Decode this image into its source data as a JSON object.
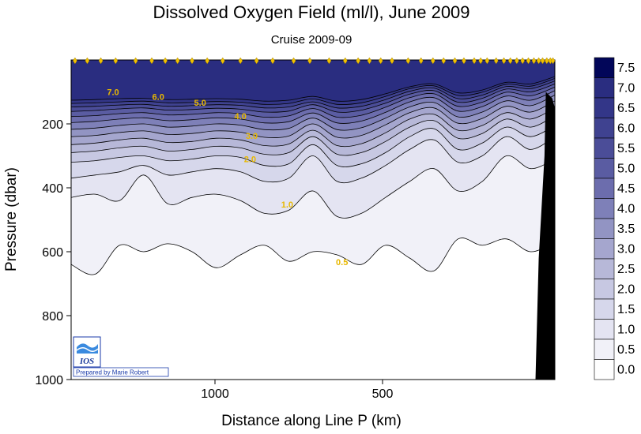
{
  "chart_data": {
    "type": "heatmap",
    "title": "Dissolved Oxygen Field  (ml/l),  June 2009",
    "subtitle": "Cruise 2009-09",
    "xlabel": "Distance along Line P  (km)",
    "ylabel": "Pressure  (dbar)",
    "xlim": [
      1500,
      0
    ],
    "ylim": [
      1000,
      0
    ],
    "x_ticks": [
      "1000",
      "500"
    ],
    "y_ticks": [
      "200",
      "400",
      "600",
      "800",
      "1000"
    ],
    "colorbar": {
      "levels": [
        "7.5",
        "7.0",
        "6.5",
        "6.0",
        "5.5",
        "5.0",
        "4.5",
        "4.0",
        "3.5",
        "3.0",
        "2.5",
        "2.0",
        "1.5",
        "1.0",
        "0.5",
        "0.0"
      ],
      "colors": [
        "#020659",
        "#2a2d80",
        "#333688",
        "#3f4290",
        "#4b4d98",
        "#5a5ca2",
        "#6c6dad",
        "#7e80b8",
        "#9294c3",
        "#a5a6ce",
        "#b7b8d8",
        "#c7c8e2",
        "#d6d7eb",
        "#e4e4f2",
        "#f1f1f8",
        "#ffffff"
      ]
    },
    "contour_labels": [
      {
        "text": "7.0",
        "distance_km": 1370,
        "pressure_dbar": 110
      },
      {
        "text": "6.0",
        "distance_km": 1230,
        "pressure_dbar": 125
      },
      {
        "text": "5.0",
        "distance_km": 1100,
        "pressure_dbar": 143
      },
      {
        "text": "4.0",
        "distance_km": 975,
        "pressure_dbar": 185
      },
      {
        "text": "3.0",
        "distance_km": 940,
        "pressure_dbar": 247
      },
      {
        "text": "2.0",
        "distance_km": 945,
        "pressure_dbar": 320
      },
      {
        "text": "1.0",
        "distance_km": 830,
        "pressure_dbar": 462
      },
      {
        "text": "0.5",
        "distance_km": 660,
        "pressure_dbar": 642
      }
    ],
    "isolines": [
      {
        "level": 0.5,
        "pressure_dbar": [
          640,
          670,
          580,
          600,
          575,
          600,
          650,
          610,
          580,
          630,
          600,
          610,
          640,
          580,
          620,
          660,
          560,
          580,
          560,
          600,
          570
        ]
      },
      {
        "level": 1.0,
        "pressure_dbar": [
          430,
          420,
          440,
          360,
          450,
          430,
          420,
          440,
          480,
          470,
          410,
          490,
          480,
          430,
          380,
          340,
          410,
          380,
          300,
          340,
          310
        ]
      },
      {
        "level": 1.5,
        "pressure_dbar": [
          370,
          360,
          350,
          330,
          360,
          350,
          340,
          350,
          380,
          370,
          300,
          380,
          370,
          330,
          280,
          250,
          320,
          300,
          240,
          280,
          240
        ]
      },
      {
        "level": 2.0,
        "pressure_dbar": [
          320,
          315,
          305,
          300,
          315,
          310,
          300,
          305,
          330,
          325,
          265,
          330,
          325,
          290,
          240,
          215,
          280,
          260,
          210,
          240,
          205
        ]
      },
      {
        "level": 2.5,
        "pressure_dbar": [
          290,
          285,
          275,
          270,
          285,
          280,
          270,
          275,
          295,
          290,
          240,
          295,
          290,
          255,
          210,
          190,
          245,
          230,
          185,
          210,
          175
        ]
      },
      {
        "level": 3.0,
        "pressure_dbar": [
          265,
          260,
          250,
          245,
          258,
          255,
          245,
          250,
          268,
          263,
          220,
          268,
          262,
          228,
          185,
          170,
          220,
          205,
          165,
          185,
          150
        ]
      },
      {
        "level": 3.5,
        "pressure_dbar": [
          240,
          236,
          227,
          222,
          233,
          230,
          222,
          226,
          242,
          238,
          200,
          242,
          236,
          203,
          165,
          150,
          198,
          183,
          145,
          163,
          128
        ]
      },
      {
        "level": 4.0,
        "pressure_dbar": [
          217,
          213,
          205,
          200,
          210,
          207,
          200,
          204,
          218,
          214,
          182,
          218,
          212,
          182,
          147,
          133,
          178,
          163,
          128,
          143,
          110
        ]
      },
      {
        "level": 4.5,
        "pressure_dbar": [
          196,
          192,
          185,
          181,
          190,
          187,
          181,
          185,
          197,
          193,
          166,
          197,
          191,
          164,
          131,
          118,
          160,
          146,
          113,
          126,
          96
        ]
      },
      {
        "level": 5.0,
        "pressure_dbar": [
          177,
          174,
          168,
          165,
          172,
          170,
          165,
          168,
          179,
          175,
          152,
          179,
          173,
          148,
          118,
          106,
          145,
          132,
          101,
          112,
          85
        ]
      },
      {
        "level": 5.5,
        "pressure_dbar": [
          161,
          158,
          153,
          150,
          157,
          155,
          151,
          154,
          163,
          160,
          140,
          163,
          157,
          135,
          107,
          96,
          132,
          120,
          91,
          100,
          75
        ]
      },
      {
        "level": 6.0,
        "pressure_dbar": [
          147,
          145,
          141,
          139,
          145,
          143,
          140,
          142,
          150,
          147,
          131,
          150,
          145,
          124,
          98,
          88,
          121,
          110,
          83,
          90,
          66
        ]
      },
      {
        "level": 6.5,
        "pressure_dbar": [
          136,
          134,
          131,
          129,
          134,
          133,
          130,
          132,
          139,
          136,
          122,
          139,
          134,
          114,
          90,
          81,
          111,
          101,
          76,
          82,
          58
        ]
      },
      {
        "level": 7.0,
        "pressure_dbar": [
          126,
          124,
          121,
          120,
          124,
          123,
          121,
          123,
          129,
          126,
          114,
          129,
          124,
          106,
          84,
          75,
          103,
          94,
          70,
          75,
          52
        ]
      }
    ],
    "station_markers_km": [
      1488,
      1450,
      1408,
      1362,
      1300,
      1250,
      1208,
      1170,
      1125,
      1078,
      1030,
      975,
      925,
      875,
      810,
      760,
      700,
      650,
      610,
      575,
      540,
      505,
      455,
      415,
      378,
      345,
      310,
      282,
      250,
      230,
      210,
      182,
      158,
      138,
      118,
      100,
      82,
      65,
      50,
      38,
      25,
      14,
      6
    ],
    "bathymetry_boundary": [
      {
        "distance_km": 60,
        "pressure_dbar": 1000
      },
      {
        "distance_km": 50,
        "pressure_dbar": 620
      },
      {
        "distance_km": 32,
        "pressure_dbar": 300
      },
      {
        "distance_km": 28,
        "pressure_dbar": 100
      },
      {
        "distance_km": 8,
        "pressure_dbar": 120
      },
      {
        "distance_km": 0,
        "pressure_dbar": 150
      }
    ]
  },
  "logo": {
    "text": "IOS",
    "credit": "Prepared by Marie Robert"
  }
}
